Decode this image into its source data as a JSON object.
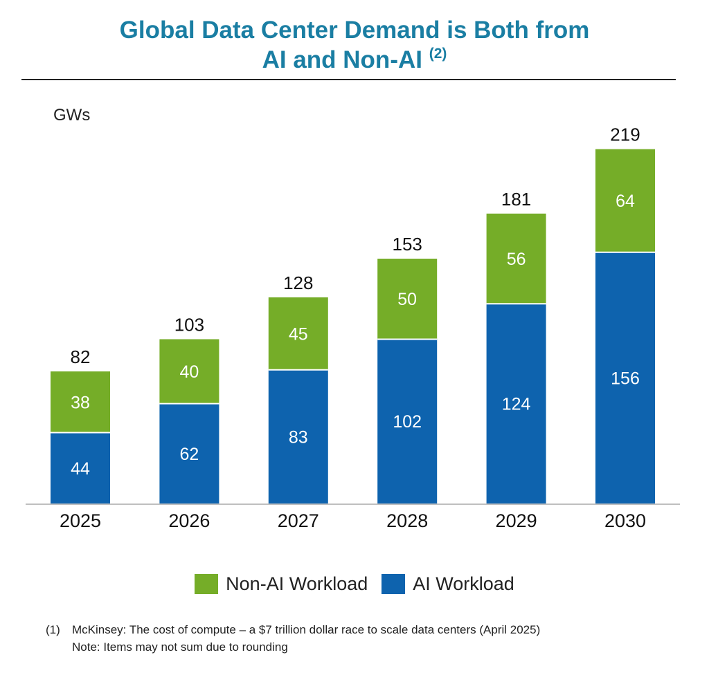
{
  "title": {
    "line1": "Global Data Center Demand is Both from",
    "line2": "AI and Non-AI",
    "ref": "(2)"
  },
  "colors": {
    "title": "#1a7ea3",
    "ai": "#0e63ae",
    "non_ai": "#75ad28",
    "axis": "#bfbfbf"
  },
  "chart_data": {
    "type": "bar",
    "stacked": true,
    "ylabel": "GWs",
    "categories": [
      "2025",
      "2026",
      "2027",
      "2028",
      "2029",
      "2030"
    ],
    "series": [
      {
        "name": "AI Workload",
        "values": [
          44,
          62,
          83,
          102,
          124,
          156
        ]
      },
      {
        "name": "Non-AI Workload",
        "values": [
          38,
          40,
          45,
          50,
          56,
          64
        ]
      }
    ],
    "totals": [
      82,
      103,
      128,
      153,
      181,
      219
    ],
    "ylim": [
      0,
      219
    ],
    "grid": false,
    "legend_position": "bottom"
  },
  "legend": {
    "non_ai_label": "Non-AI Workload",
    "ai_label": "AI Workload"
  },
  "footnotes": {
    "num": "(1)",
    "source": "McKinsey: The cost of compute – a $7 trillion dollar race to scale data centers (April 2025)",
    "note": "Note: Items may not sum due to rounding"
  }
}
